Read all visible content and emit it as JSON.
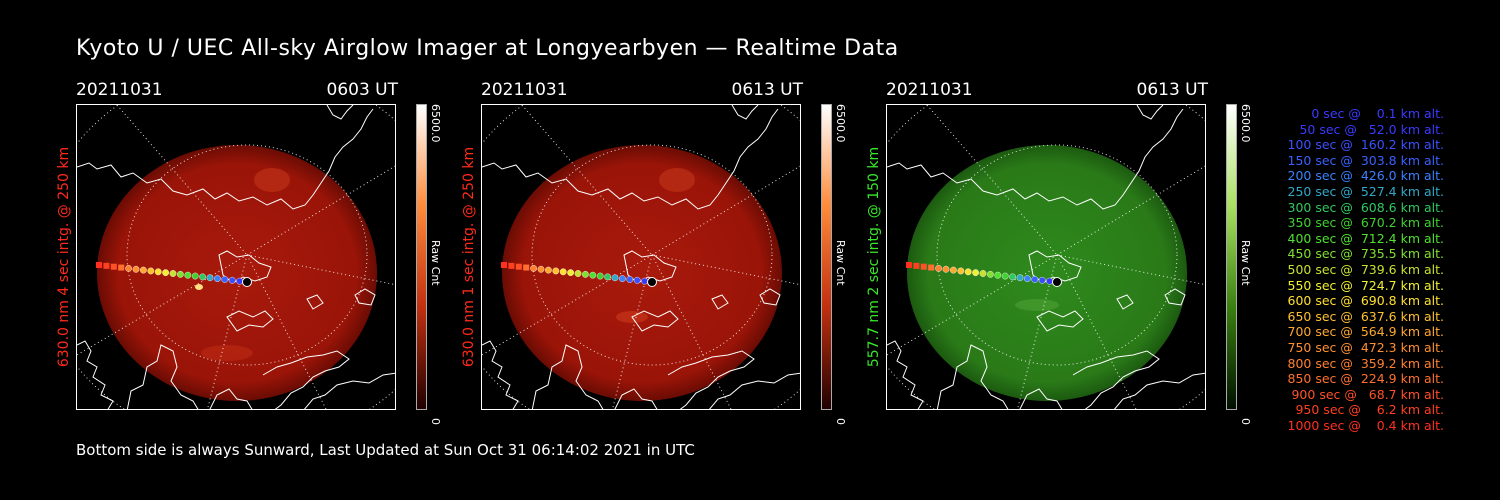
{
  "title": "Kyoto U / UEC All-sky Airglow Imager at Longyearbyen — Realtime Data",
  "footer": "Bottom side is always Sunward, Last Updated at Sun Oct 31 06:14:02 2021 in UTC",
  "panels": [
    {
      "date": "20211031",
      "time": "0603 UT",
      "ylabel": "630.0 nm 4 sec intg. @ 250 km",
      "label_color": "#ff2a1a",
      "colorbar_max": "6500.0",
      "colorbar_unit": "Raw Cnt",
      "colorbar_min": "0",
      "colorbar_colors": [
        "#ffffff",
        "#ff8a3a",
        "#c03010",
        "#200000"
      ],
      "disk_color": "#9a1408",
      "emission": "red"
    },
    {
      "date": "20211031",
      "time": "0613 UT",
      "ylabel": "630.0 nm 1 sec intg. @ 250 km",
      "label_color": "#ff2a1a",
      "colorbar_max": "6500.0",
      "colorbar_unit": "Raw Cnt",
      "colorbar_min": "0",
      "colorbar_colors": [
        "#ffffff",
        "#ff8a3a",
        "#c03010",
        "#200000"
      ],
      "disk_color": "#9a1408",
      "emission": "red"
    },
    {
      "date": "20211031",
      "time": "0613 UT",
      "ylabel": "557.7 nm 2 sec intg. @ 150 km",
      "label_color": "#38e82a",
      "colorbar_max": "6500.0",
      "colorbar_unit": "Raw Cnt",
      "colorbar_min": "0",
      "colorbar_colors": [
        "#ffffff",
        "#a8e060",
        "#3a8010",
        "#001000"
      ],
      "disk_color": "#2a7a18",
      "emission": "green"
    }
  ],
  "legend": [
    {
      "text": "0 sec @    0.1 km alt.",
      "color": "#3a3aff"
    },
    {
      "text": "50 sec @   52.0 km alt.",
      "color": "#3a3aff"
    },
    {
      "text": "100 sec @  160.2 km alt.",
      "color": "#3a50ff"
    },
    {
      "text": "150 sec @  303.8 km alt.",
      "color": "#3a60ff"
    },
    {
      "text": "200 sec @  426.0 km alt.",
      "color": "#3a80ff"
    },
    {
      "text": "250 sec @  527.4 km alt.",
      "color": "#30a8c8"
    },
    {
      "text": "300 sec @  608.6 km alt.",
      "color": "#30c860"
    },
    {
      "text": "350 sec @  670.2 km alt.",
      "color": "#40d030"
    },
    {
      "text": "400 sec @  712.4 km alt.",
      "color": "#50e030"
    },
    {
      "text": "450 sec @  735.5 km alt.",
      "color": "#80e030"
    },
    {
      "text": "500 sec @  739.6 km alt.",
      "color": "#c8e030"
    },
    {
      "text": "550 sec @  724.7 km alt.",
      "color": "#f0f030"
    },
    {
      "text": "600 sec @  690.8 km alt.",
      "color": "#ffe030"
    },
    {
      "text": "650 sec @  637.6 km alt.",
      "color": "#ffc030"
    },
    {
      "text": "700 sec @  564.9 km alt.",
      "color": "#ffa830"
    },
    {
      "text": "750 sec @  472.3 km alt.",
      "color": "#ff9030"
    },
    {
      "text": "800 sec @  359.2 km alt.",
      "color": "#ff8030"
    },
    {
      "text": "850 sec @  224.9 km alt.",
      "color": "#ff7030"
    },
    {
      "text": "900 sec @   68.7 km alt.",
      "color": "#ff5028"
    },
    {
      "text": "950 sec @    6.2 km alt.",
      "color": "#ff4020"
    },
    {
      "text": "1000 sec @    0.4 km alt.",
      "color": "#ff3020"
    }
  ]
}
